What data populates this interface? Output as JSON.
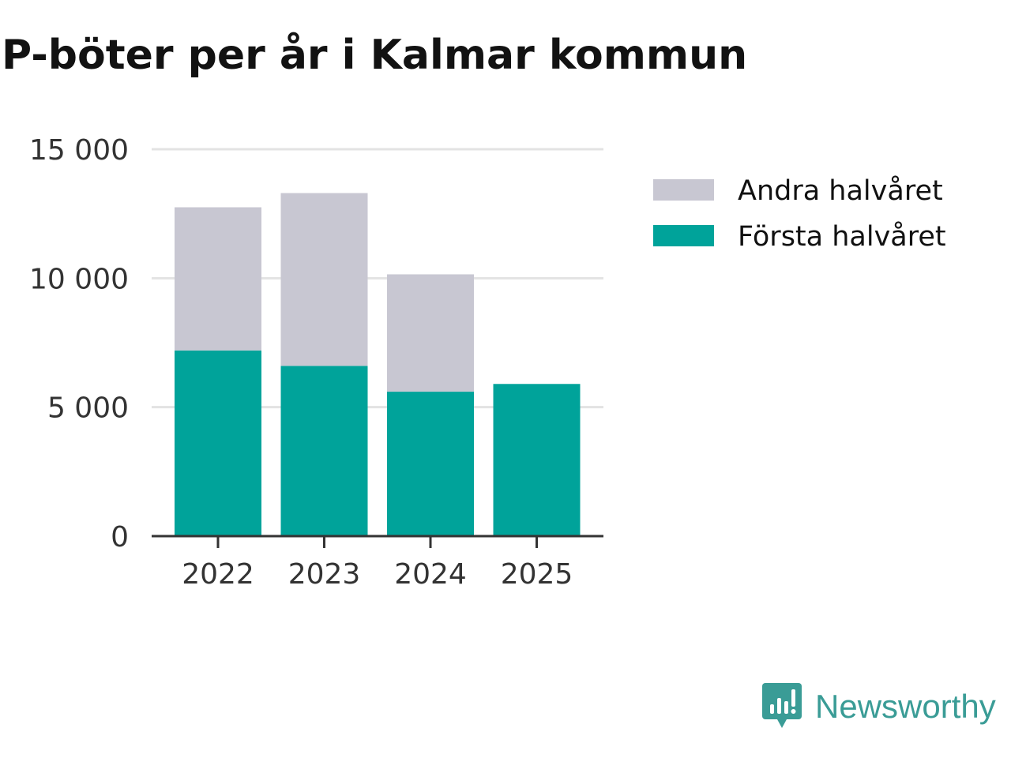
{
  "chart_data": {
    "type": "bar",
    "stacked": true,
    "title": "P-böter per år i Kalmar kommun",
    "categories": [
      "2022",
      "2023",
      "2024",
      "2025"
    ],
    "series": [
      {
        "name": "Första halvåret",
        "values": [
          7200,
          6600,
          5600,
          5900
        ],
        "color": "#00a39a"
      },
      {
        "name": "Andra halvåret",
        "values": [
          5550,
          6700,
          4550,
          0
        ],
        "color": "#c8c7d2"
      }
    ],
    "legend_order": [
      "Andra halvåret",
      "Första halvåret"
    ],
    "yticks": [
      0,
      5000,
      10000,
      15000
    ],
    "ytick_labels": [
      "0",
      "5 000",
      "10 000",
      "15 000"
    ],
    "ylim": [
      0,
      15000
    ],
    "xlabel": "",
    "ylabel": "",
    "grid": true,
    "legend_position": "right"
  },
  "brand": {
    "name": "Newsworthy",
    "color": "#3a9c96"
  }
}
